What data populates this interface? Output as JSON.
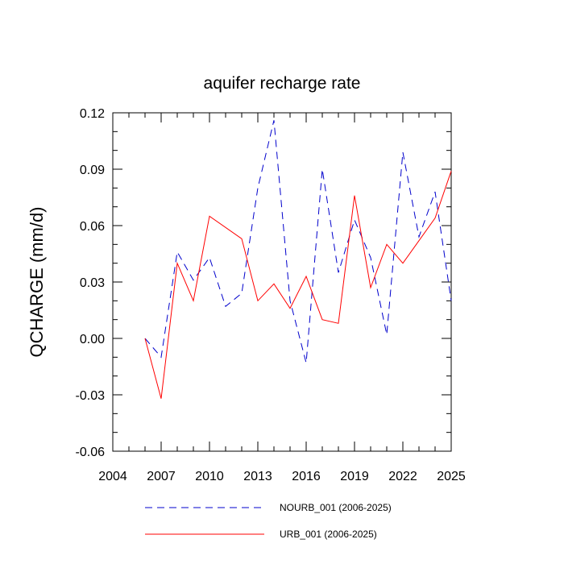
{
  "chart_data": {
    "type": "line",
    "title": "aquifer recharge rate",
    "xlabel": "",
    "ylabel": "QCHARGE  (mm/d)",
    "xlim": [
      2004,
      2025
    ],
    "ylim": [
      -0.06,
      0.12
    ],
    "xticks": [
      2004,
      2007,
      2010,
      2013,
      2016,
      2019,
      2022,
      2025
    ],
    "xtick_labels": [
      "2004",
      "2007",
      "2010",
      "2013",
      "2016",
      "2019",
      "2022",
      "2025"
    ],
    "yticks": [
      -0.06,
      -0.03,
      0.0,
      0.03,
      0.06,
      0.09,
      0.12
    ],
    "ytick_labels": [
      "-0.06",
      "-0.03",
      "0.00",
      "0.03",
      "0.06",
      "0.09",
      "0.12"
    ],
    "x": [
      2006,
      2007,
      2008,
      2009,
      2010,
      2011,
      2012,
      2013,
      2014,
      2015,
      2016,
      2017,
      2018,
      2019,
      2020,
      2021,
      2022,
      2023,
      2024,
      2025
    ],
    "series": [
      {
        "name": "NOURB_001 (2006-2025)",
        "color": "#0000cc",
        "style": "dashed",
        "values": [
          0.0,
          -0.01,
          0.046,
          0.031,
          0.043,
          0.017,
          0.024,
          0.08,
          0.116,
          0.02,
          -0.013,
          0.09,
          0.035,
          0.063,
          0.043,
          0.002,
          0.099,
          0.054,
          0.078,
          0.02
        ]
      },
      {
        "name": "URB_001 (2006-2025)",
        "color": "#ff0000",
        "style": "solid",
        "values": [
          0.0,
          -0.032,
          0.04,
          0.02,
          0.065,
          null,
          0.053,
          0.02,
          0.029,
          0.016,
          0.033,
          0.01,
          0.008,
          0.076,
          0.027,
          0.05,
          0.04,
          0.052,
          0.064,
          0.089
        ]
      }
    ],
    "legend_position": "bottom"
  }
}
